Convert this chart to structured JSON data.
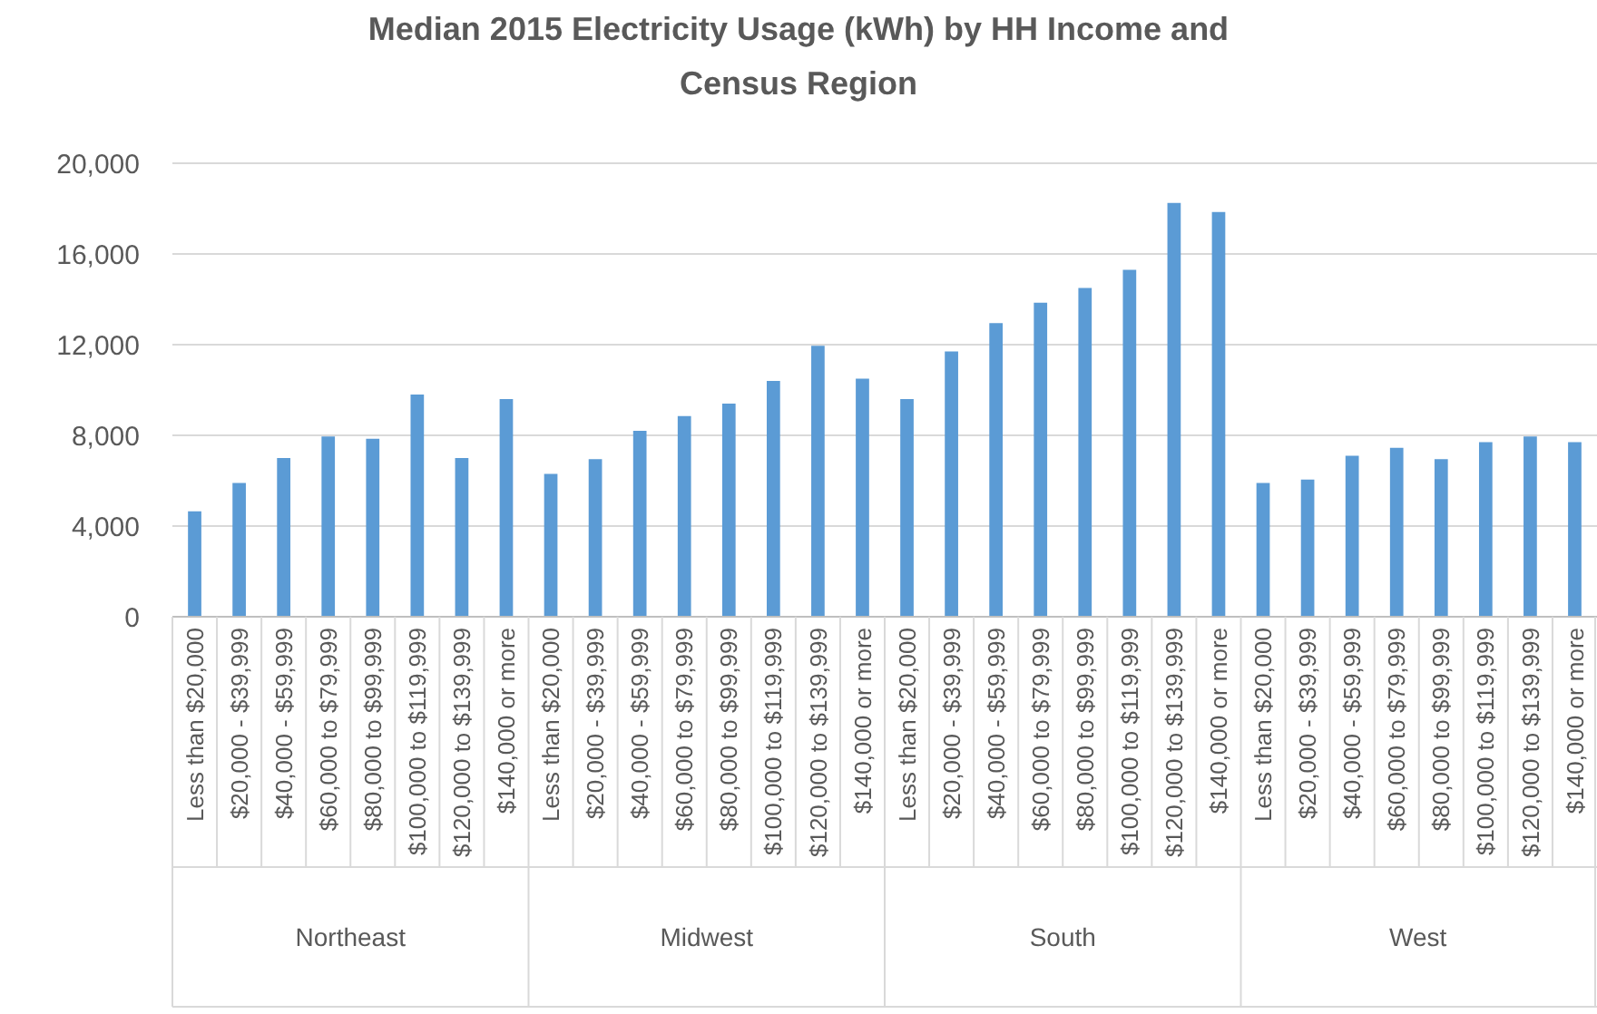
{
  "chart_data": {
    "type": "bar",
    "title": "Median 2015 Electricity Usage (kWh) by HH Income and Census Region",
    "categories": [
      "Less than $20,000",
      "$20,000 - $39,999",
      "$40,000 - $59,999",
      "$60,000 to $79,999",
      "$80,000 to $99,999",
      "$100,000 to $119,999",
      "$120,000 to $139,999",
      "$140,000 or more",
      "Less than $20,000",
      "$20,000 - $39,999",
      "$40,000 - $59,999",
      "$60,000 to $79,999",
      "$80,000 to $99,999",
      "$100,000 to $119,999",
      "$120,000 to $139,999",
      "$140,000 or more",
      "Less than $20,000",
      "$20,000 - $39,999",
      "$40,000 - $59,999",
      "$60,000 to $79,999",
      "$80,000 to $99,999",
      "$100,000 to $119,999",
      "$120,000 to $139,999",
      "$140,000 or more",
      "Less than $20,000",
      "$20,000 - $39,999",
      "$40,000 - $59,999",
      "$60,000 to $79,999",
      "$80,000 to $99,999",
      "$100,000 to $119,999",
      "$120,000 to $139,999",
      "$140,000 or more"
    ],
    "values": [
      4650,
      5900,
      7000,
      7950,
      7850,
      9800,
      7000,
      9600,
      6300,
      6950,
      8200,
      8850,
      9400,
      10400,
      11950,
      10500,
      9600,
      11700,
      12950,
      13850,
      14500,
      15300,
      18250,
      17850,
      5900,
      6050,
      7100,
      7450,
      6950,
      7700,
      7950,
      7700
    ],
    "color": "#5b9bd5",
    "annotations": [
      "Northeast",
      "Midwest",
      "South",
      "West"
    ],
    "ylim": [
      0,
      20000
    ],
    "yticks": [
      {
        "value": 0,
        "label": "0"
      },
      {
        "value": 4000,
        "label": "4,000"
      },
      {
        "value": 8000,
        "label": "8,000"
      },
      {
        "value": 12000,
        "label": "12,000"
      },
      {
        "value": 16000,
        "label": "16,000"
      },
      {
        "value": 20000,
        "label": "20,000"
      }
    ],
    "grid": "y"
  }
}
